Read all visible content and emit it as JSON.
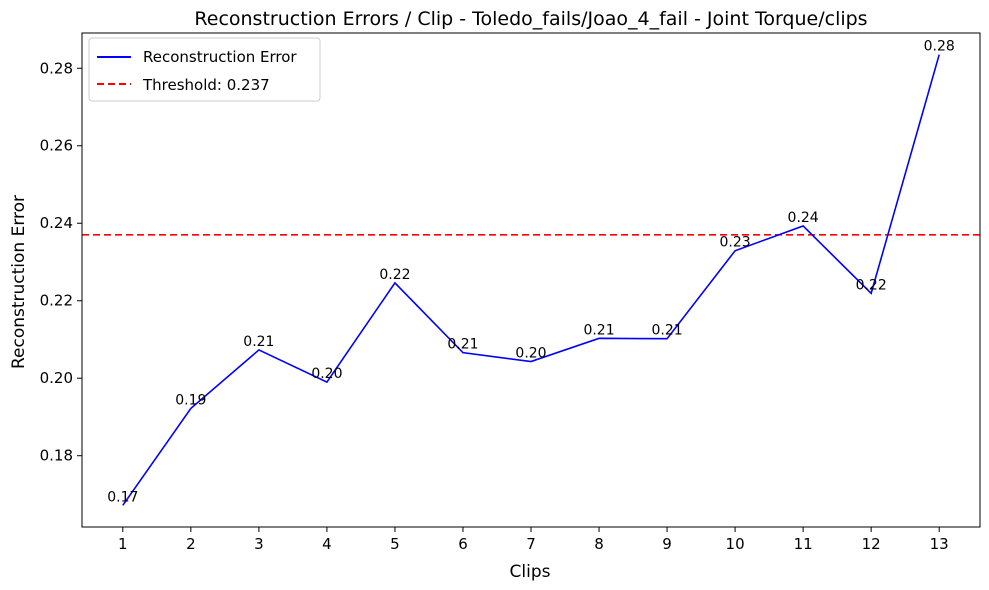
{
  "chart_data": {
    "type": "line",
    "title": "Reconstruction Errors / Clip - Toledo_fails/Joao_4_fail - Joint Torque/clips",
    "xlabel": "Clips",
    "ylabel": "Reconstruction Error",
    "x": [
      1,
      2,
      3,
      4,
      5,
      6,
      7,
      8,
      9,
      10,
      11,
      12,
      13
    ],
    "series": [
      {
        "name": "Reconstruction Error",
        "color": "#0000ff",
        "values": [
          0.1672,
          0.1922,
          0.2073,
          0.199,
          0.2246,
          0.2066,
          0.2043,
          0.2103,
          0.2102,
          0.2329,
          0.2393,
          0.2219,
          0.2835
        ],
        "labels": [
          "0.17",
          "0.19",
          "0.21",
          "0.20",
          "0.22",
          "0.21",
          "0.20",
          "0.21",
          "0.21",
          "0.23",
          "0.24",
          "0.22",
          "0.28"
        ]
      }
    ],
    "threshold": {
      "name": "Threshold: 0.237",
      "value": 0.237,
      "color": "#ff0000",
      "style": "dashed"
    },
    "xlim": [
      0.4,
      13.6
    ],
    "ylim": [
      0.1616,
      0.2891
    ],
    "xticks": [
      1,
      2,
      3,
      4,
      5,
      6,
      7,
      8,
      9,
      10,
      11,
      12,
      13
    ],
    "yticks": [
      0.18,
      0.2,
      0.22,
      0.24,
      0.26,
      0.28
    ],
    "ytick_labels": [
      "0.18",
      "0.20",
      "0.22",
      "0.24",
      "0.26",
      "0.28"
    ],
    "grid": false,
    "legend_position": "top-left"
  }
}
